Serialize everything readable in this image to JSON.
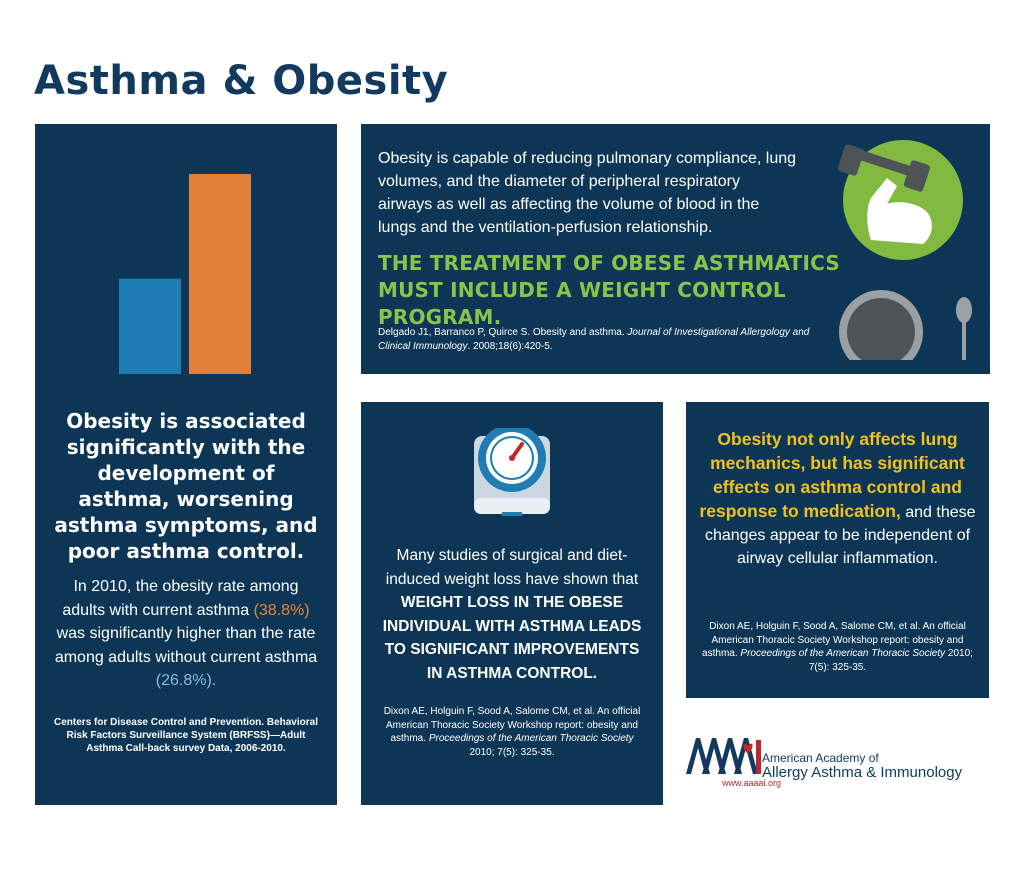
{
  "title": "Asthma & Obesity",
  "left_panel": {
    "heading": "Obesity is associated significantly with the development of asthma, worsening asthma symptoms, and poor asthma control.",
    "body_prefix": "In 2010, the obesity rate among adults with current asthma ",
    "value_with_asthma": "(38.8%)",
    "body_middle": " was significantly higher than the rate among adults without current asthma ",
    "value_without_asthma": "(26.8%).",
    "citation": "Centers for Disease Control and Prevention. Behavioral Risk Factors Surveillance System (BRFSS)—Adult Asthma Call-back survey Data, 2006-2010.",
    "bars": {
      "with_asthma": 38.8,
      "without_asthma": 26.8,
      "color_with": "#e07f35",
      "color_without": "#1f7db4"
    }
  },
  "top_panel": {
    "body": "Obesity is capable of reducing pulmonary compliance, lung volumes, and the diameter of peripheral respiratory airways as well as affecting the volume of blood in the lungs and the ventilation-perfusion relationship.",
    "callout": "THE TREATMENT OF OBESE ASTHMATICS MUST INCLUDE A WEIGHT CONTROL PROGRAM.",
    "cite_authors": "Delgado J1, Barranco P, Quirce S. Obesity and asthma. ",
    "cite_journal": "Journal of Investigational Allergology and Clinical Immunology",
    "cite_details": ". 2008;18(6):420-5.",
    "icons": [
      "dumbbell-arm-icon",
      "fork-icon",
      "plate-icon",
      "spoon-icon"
    ]
  },
  "middle_panel": {
    "icon": "scale-icon",
    "body_prefix": "Many studies of surgical and diet-induced weight loss have shown that ",
    "body_strong": "WEIGHT LOSS IN THE OBESE INDIVIDUAL WITH ASTHMA LEADS TO SIGNIFICANT IMPROVEMENTS IN ASTHMA CONTROL.",
    "cite_authors": "Dixon AE, Holguin F, Sood A, Salome CM, et al. An official American Thoracic Society Workshop report: obesity and asthma. ",
    "cite_journal": "Proceedings of the American Thoracic Society",
    "cite_details": " 2010; 7(5): 325-35."
  },
  "right_panel": {
    "highlight": "Obesity not only affects lung mechanics, but has significant effects on asthma control and response to medication,",
    "body": " and these changes appear to be independent of airway cellular inflammation.",
    "cite_authors": "Dixon AE, Holguin F, Sood A, Salome CM, et al. An official American Thoracic Society Workshop report: obesity and asthma. ",
    "cite_journal": "Proceedings of the American Thoracic Society",
    "cite_details": " 2010; 7(5): 325-35."
  },
  "logo": {
    "mark": "AAAAI",
    "name_line1": "American Academy of",
    "name_line2": "Allergy Asthma & Immunology",
    "url": "www.aaaai.org"
  },
  "colors": {
    "navy": "#0d3656",
    "title": "#123a5f",
    "green": "#8bc34a",
    "yellow": "#f1c21b",
    "orange": "#e8843a",
    "logo_red": "#c0272d"
  }
}
